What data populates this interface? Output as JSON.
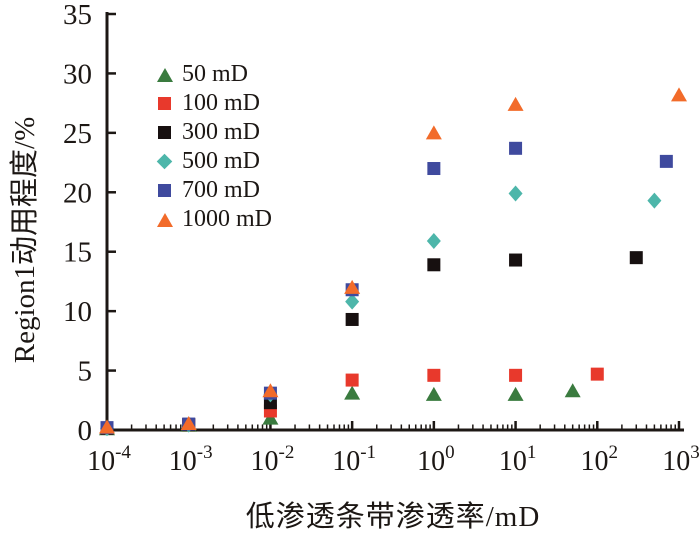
{
  "chart_data": {
    "type": "scatter",
    "title": "",
    "x_axis": {
      "label": "低渗透条带渗透率/mD",
      "scale": "log10",
      "tick_base": "10",
      "tick_exponents": [
        -4,
        -3,
        -2,
        -1,
        0,
        1,
        2,
        3
      ],
      "range": [
        0.0001,
        1000
      ],
      "minor_ticks": true
    },
    "y_axis": {
      "label": "Region1动用程度/%",
      "ticks": [
        0,
        5,
        10,
        15,
        20,
        25,
        30,
        35
      ],
      "range": [
        0,
        35
      ]
    },
    "grid": false,
    "legend_position": "upper-left-inside",
    "series": [
      {
        "name": "50 mD",
        "marker": "triangle",
        "color": "#3a7b3f",
        "points": [
          [
            0.0001,
            0.1
          ],
          [
            0.001,
            0.4
          ],
          [
            0.01,
            1.0
          ],
          [
            0.1,
            3.1
          ],
          [
            1,
            3.0
          ],
          [
            10,
            3.0
          ],
          [
            50,
            3.3
          ]
        ]
      },
      {
        "name": "100 mD",
        "marker": "square",
        "color": "#e8392c",
        "points": [
          [
            0.0001,
            0.15
          ],
          [
            0.001,
            0.45
          ],
          [
            0.01,
            1.6
          ],
          [
            0.1,
            4.2
          ],
          [
            1,
            4.6
          ],
          [
            10,
            4.6
          ],
          [
            100,
            4.7
          ]
        ]
      },
      {
        "name": "300 mD",
        "marker": "square",
        "color": "#171010",
        "points": [
          [
            0.0001,
            0.15
          ],
          [
            0.001,
            0.45
          ],
          [
            0.01,
            2.3
          ],
          [
            0.1,
            9.3
          ],
          [
            1,
            13.9
          ],
          [
            10,
            14.3
          ],
          [
            300,
            14.5
          ]
        ]
      },
      {
        "name": "500 mD",
        "marker": "diamond",
        "color": "#4db6aa",
        "points": [
          [
            0.0001,
            0.15
          ],
          [
            0.001,
            0.45
          ],
          [
            0.01,
            3.0
          ],
          [
            0.1,
            10.8
          ],
          [
            1,
            15.9
          ],
          [
            10,
            19.9
          ],
          [
            500,
            19.3
          ]
        ]
      },
      {
        "name": "700 mD",
        "marker": "square",
        "color": "#3f4a9e",
        "points": [
          [
            0.0001,
            0.2
          ],
          [
            0.001,
            0.5
          ],
          [
            0.01,
            3.1
          ],
          [
            0.1,
            11.8
          ],
          [
            1,
            22.0
          ],
          [
            10,
            23.7
          ],
          [
            700,
            22.6
          ]
        ]
      },
      {
        "name": "1000 mD",
        "marker": "triangle",
        "color": "#f26b2a",
        "points": [
          [
            0.0001,
            0.25
          ],
          [
            0.001,
            0.55
          ],
          [
            0.01,
            3.3
          ],
          [
            0.1,
            12.0
          ],
          [
            1,
            25.0
          ],
          [
            10,
            27.4
          ],
          [
            1000,
            28.2
          ]
        ]
      }
    ],
    "axis_color": "#1c1714"
  }
}
